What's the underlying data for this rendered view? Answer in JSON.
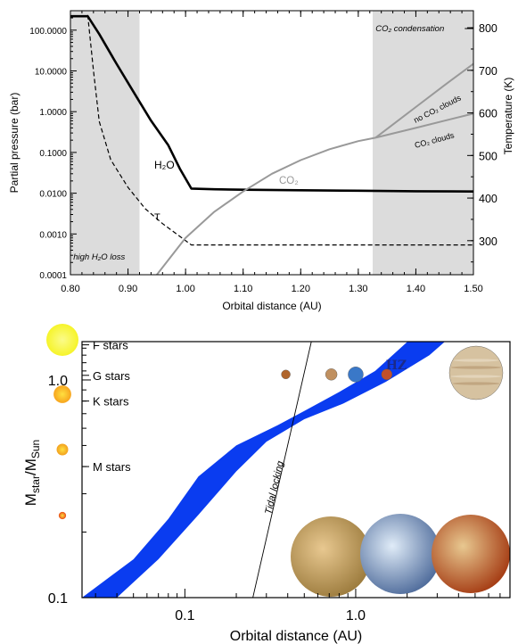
{
  "chart_data": [
    {
      "type": "line",
      "xlabel": "Orbital distance (AU)",
      "ylabel": "Partial pressure (bar)",
      "y2label": "Temperature (K)",
      "xlim": [
        0.8,
        1.5
      ],
      "ylim": [
        0.0001,
        300
      ],
      "yscale": "log",
      "y2lim": [
        220,
        840
      ],
      "xticks": [
        "0.80",
        "0.90",
        "1.00",
        "1.10",
        "1.20",
        "1.30",
        "1.40",
        "1.50"
      ],
      "yticks": [
        "0.0001",
        "0.0010",
        "0.0100",
        "0.1000",
        "1.0000",
        "10.0000",
        "100.0000"
      ],
      "y2ticks": [
        "300",
        "400",
        "500",
        "600",
        "700",
        "800"
      ],
      "shaded_regions": [
        {
          "x": [
            0.8,
            0.92
          ],
          "label": "high H₂O loss"
        },
        {
          "x": [
            1.325,
            1.5
          ],
          "label": "CO₂ condensation"
        }
      ],
      "series": [
        {
          "name": "H₂O",
          "axis": "left",
          "color": "#000000",
          "style": "solid",
          "x": [
            0.8,
            0.83,
            0.85,
            0.88,
            0.91,
            0.94,
            0.97,
            0.99,
            1.01,
            1.05,
            1.1,
            1.2,
            1.3,
            1.4,
            1.5
          ],
          "y": [
            220,
            220,
            80,
            15,
            3,
            0.6,
            0.15,
            0.04,
            0.013,
            0.0125,
            0.0122,
            0.0118,
            0.0115,
            0.0112,
            0.011
          ]
        },
        {
          "name": "T",
          "axis": "right",
          "color": "#000000",
          "style": "dashed",
          "x": [
            0.83,
            0.84,
            0.85,
            0.87,
            0.9,
            0.93,
            0.96,
            0.99,
            1.01,
            1.1,
            1.3,
            1.5
          ],
          "y": [
            830,
            700,
            580,
            490,
            425,
            375,
            340,
            310,
            290,
            290,
            290,
            290
          ]
        },
        {
          "name": "CO₂",
          "axis": "left",
          "color": "#999999",
          "style": "solid",
          "x": [
            0.95,
            1.0,
            1.05,
            1.1,
            1.15,
            1.2,
            1.25,
            1.3,
            1.33
          ],
          "y": [
            0.0001,
            0.0008,
            0.0035,
            0.011,
            0.03,
            0.065,
            0.12,
            0.19,
            0.23
          ]
        },
        {
          "name": "no CO₂ clouds",
          "axis": "left",
          "color": "#999999",
          "style": "solid",
          "x": [
            1.33,
            1.4,
            1.45,
            1.5
          ],
          "y": [
            0.23,
            1.3,
            4.5,
            15
          ]
        },
        {
          "name": "CO₂ clouds",
          "axis": "left",
          "color": "#999999",
          "style": "solid",
          "x": [
            1.33,
            1.4,
            1.45,
            1.5
          ],
          "y": [
            0.23,
            0.4,
            0.6,
            0.9
          ]
        }
      ]
    },
    {
      "type": "area",
      "xlabel": "Orbital distance (AU)",
      "ylabel_main": "M",
      "ylabel_main_sub": "star",
      "ylabel_sep": "/M",
      "ylabel_den_sub": "Sun",
      "xscale": "log",
      "yscale": "log",
      "xlim": [
        0.025,
        8
      ],
      "ylim": [
        0.1,
        1.5
      ],
      "xticks": [
        "0.1",
        "1.0"
      ],
      "yticks": [
        "0.1",
        "1.0"
      ],
      "star_classes": [
        {
          "label": "F stars",
          "mass": 1.45,
          "color": "#f6f42a",
          "size": 1.0
        },
        {
          "label": "G stars",
          "mass": 1.05,
          "color": "#f7a41d",
          "size": 0.55
        },
        {
          "label": "K stars",
          "mass": 0.8,
          "color": "#f2a01e",
          "size": 0.36
        },
        {
          "label": "M stars",
          "mass": 0.4,
          "color": "#e84a14",
          "size": 0.23
        }
      ],
      "habitable_zone": {
        "label": "HZ",
        "color": "#0a3cf0",
        "inner": {
          "x": [
            0.025,
            0.05,
            0.08,
            0.12,
            0.2,
            0.35,
            0.5,
            0.8,
            1.3,
            2.4
          ],
          "y": [
            0.1,
            0.15,
            0.23,
            0.36,
            0.5,
            0.62,
            0.72,
            0.88,
            1.1,
            1.7
          ]
        },
        "outer": {
          "x": [
            0.04,
            0.07,
            0.12,
            0.2,
            0.3,
            0.5,
            0.85,
            1.5,
            2.7,
            4.0
          ],
          "y": [
            0.1,
            0.15,
            0.24,
            0.38,
            0.52,
            0.66,
            0.78,
            0.98,
            1.3,
            1.7
          ]
        }
      },
      "tidal_locking": {
        "label": "Tidal locking",
        "x": [
          0.25,
          0.55
        ],
        "y": [
          0.1,
          1.5
        ]
      },
      "solar_system_planets": [
        {
          "name": "Mercury",
          "x": 0.39,
          "color": "#b0652b"
        },
        {
          "name": "Venus",
          "x": 0.72,
          "color": "#c09060"
        },
        {
          "name": "Earth",
          "x": 1.0,
          "color": "#3a78c8"
        },
        {
          "name": "Mars",
          "x": 1.52,
          "color": "#c0502a"
        },
        {
          "name": "Jupiter",
          "x": 5.2,
          "color": "#d6c2a0"
        }
      ],
      "planet_images": [
        {
          "name": "planet-image-1",
          "color": "#9b7a3c"
        },
        {
          "name": "planet-image-2",
          "color": "#4d6a9a"
        },
        {
          "name": "planet-image-3",
          "color": "#a43a12"
        }
      ]
    }
  ]
}
